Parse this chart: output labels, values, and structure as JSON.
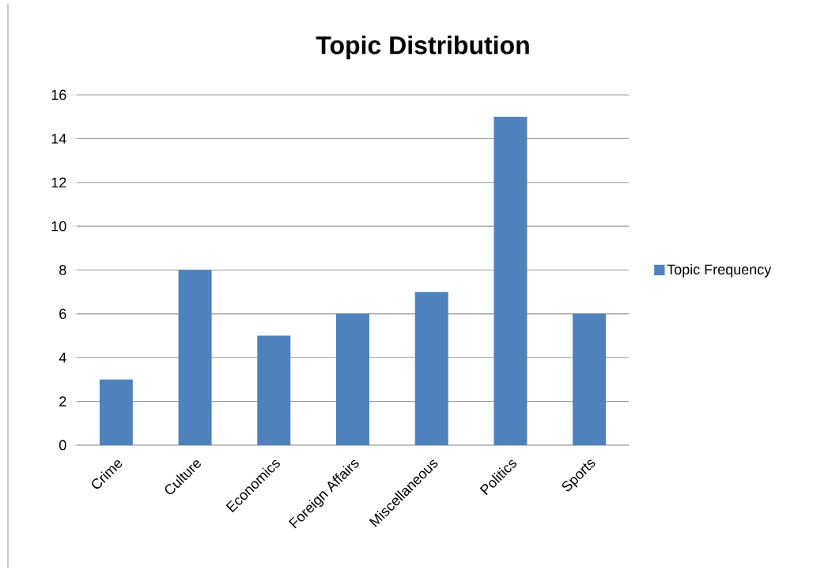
{
  "chart_data": {
    "type": "bar",
    "title": "Topic Distribution",
    "categories": [
      "Crime",
      "Culture",
      "Economics",
      "Foreign Affairs",
      "Miscellaneous",
      "Politics",
      "Sports"
    ],
    "series": [
      {
        "name": "Topic Frequency",
        "color": "#4f81bd",
        "values": [
          3,
          8,
          5,
          6,
          7,
          15,
          6
        ]
      }
    ],
    "ylim": [
      0,
      16
    ],
    "yticks": [
      0,
      2,
      4,
      6,
      8,
      10,
      12,
      14,
      16
    ],
    "grid": "y",
    "legend": "right"
  }
}
